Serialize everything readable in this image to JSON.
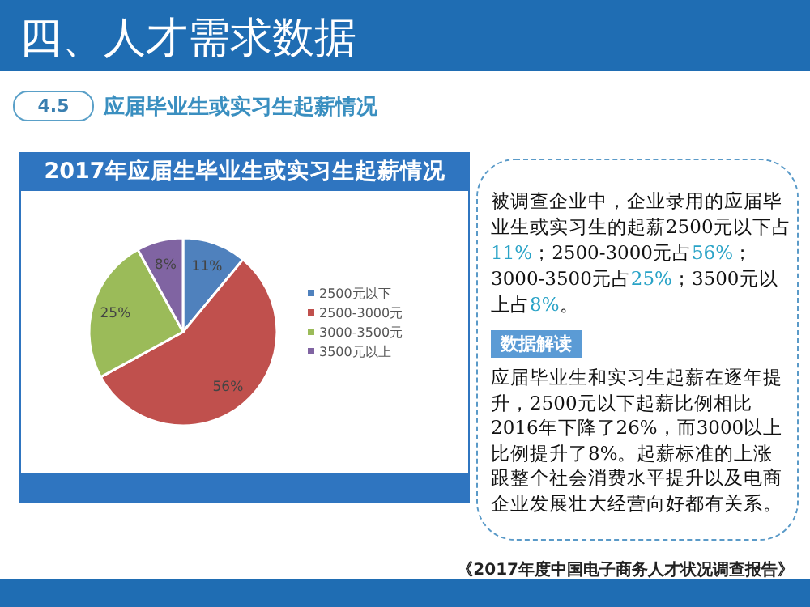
{
  "chart_data": {
    "type": "pie",
    "title": "2017年应届生毕业生或实习生起薪情况",
    "categories": [
      "2500元以下",
      "2500-3000元",
      "3000-3500元",
      "3500元以上"
    ],
    "values": [
      11,
      56,
      25,
      8
    ],
    "colors": [
      "#4f81bd",
      "#c0504d",
      "#9bbb59",
      "#8064a2"
    ],
    "value_labels": [
      "11%",
      "56%",
      "25%",
      "8%"
    ],
    "legend": "right",
    "annotations": [
      "四、人才需求数据",
      "4.5",
      "应届毕业生或实习生起薪情况",
      "被调查企业中，企业录用的应届毕业生或实习生的起薪2500元以下占11%；2500-3000元占56%；3000-3500元占25%；3500元以上占8%。",
      "数据解读",
      "应届毕业生和实习生起薪在逐年提升，2500元以下起薪比例相比2016年下降了26%，而3000以上比例提升了8%。起薪标准的上涨跟整个社会消费水平提升以及电商企业发展壮大经营向好都有关系。",
      "《2017年度中国电子商务人才状况调查报告》"
    ]
  }
}
